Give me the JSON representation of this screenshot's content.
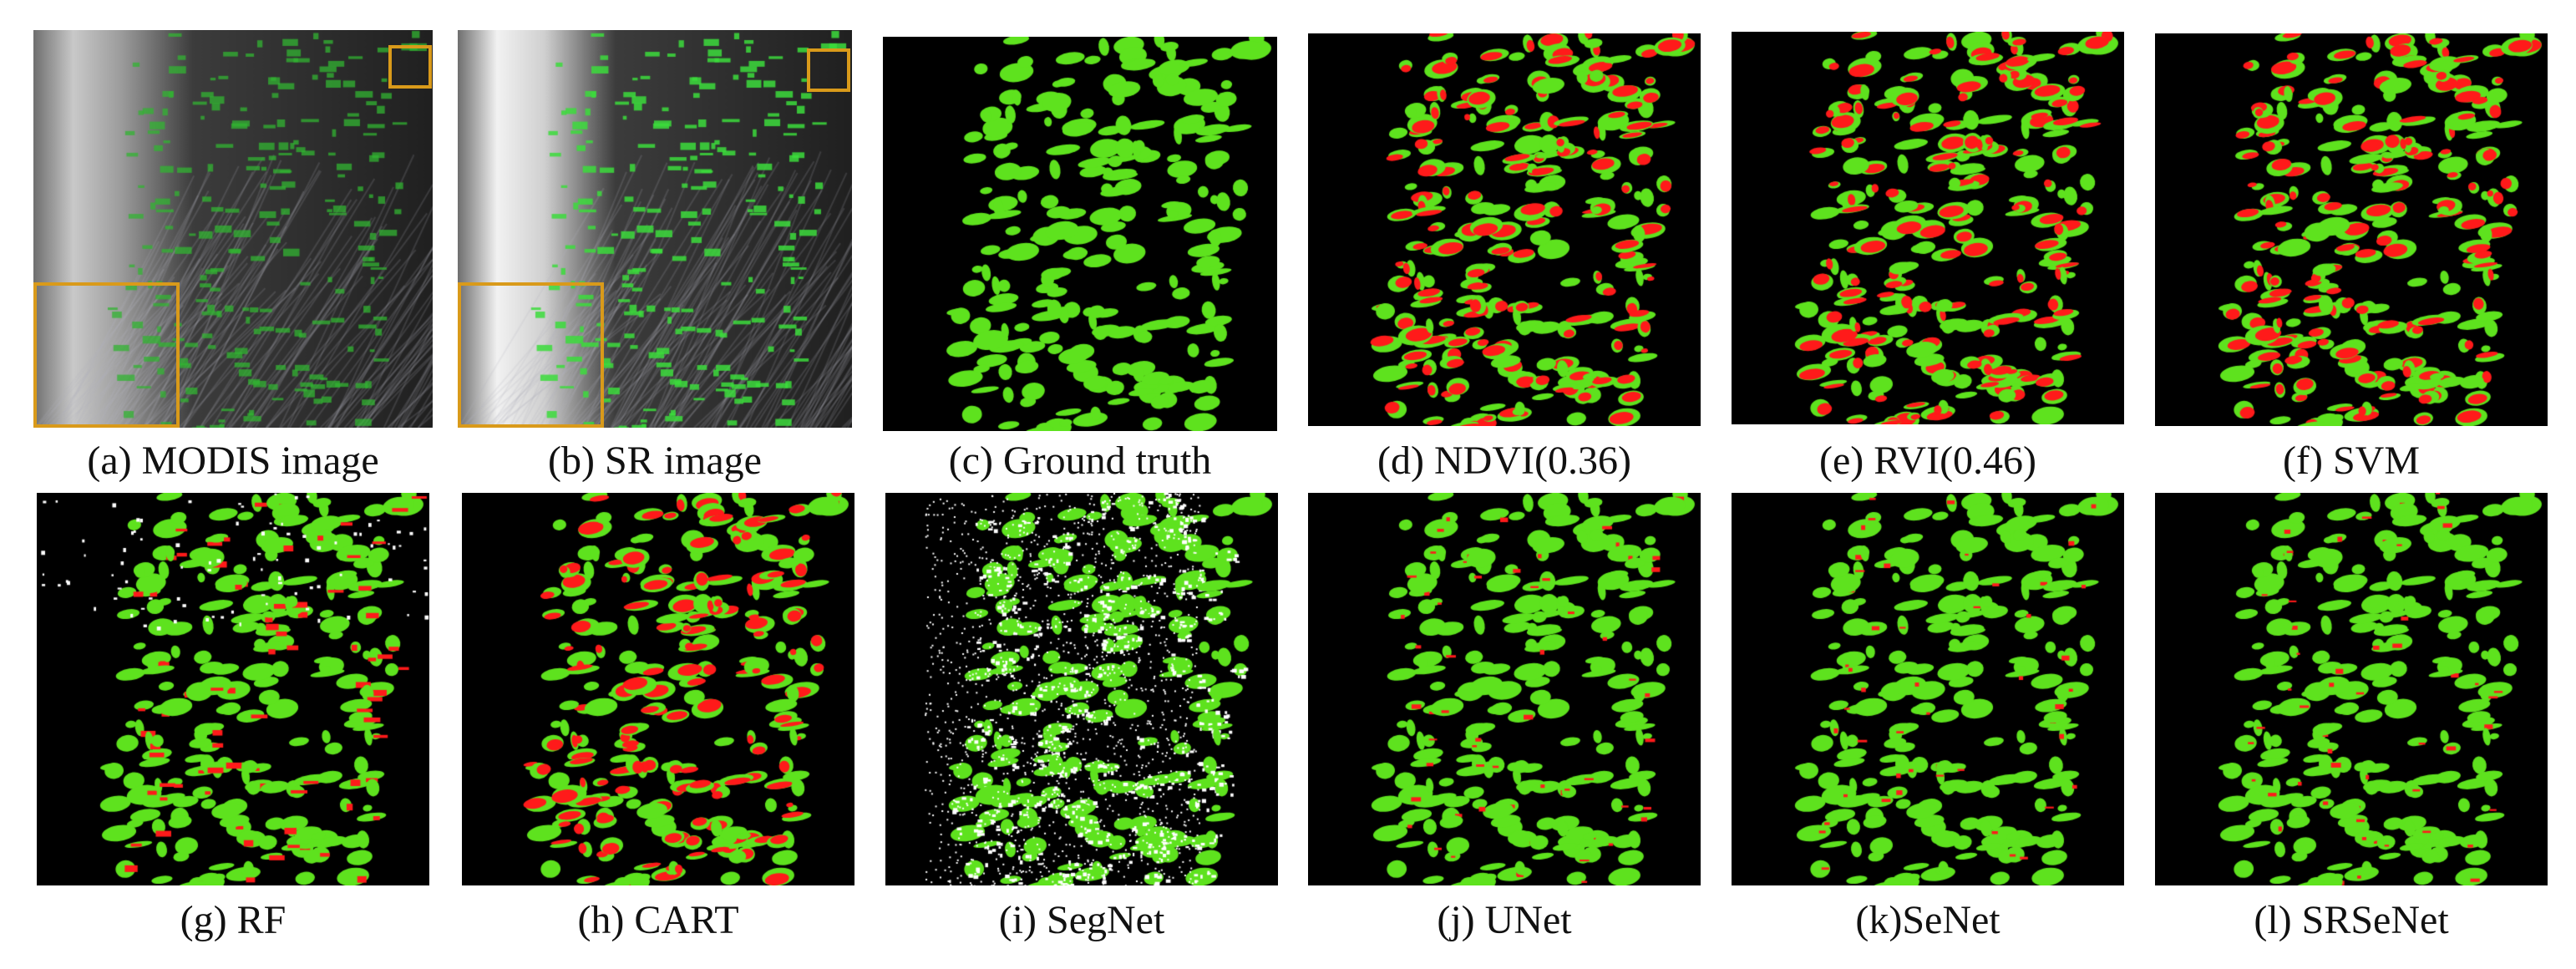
{
  "figure": {
    "rows": [
      {
        "panels": [
          {
            "id": "a",
            "caption": "(a) MODIS image",
            "kind": "modis"
          },
          {
            "id": "b",
            "caption": "(b) SR image",
            "kind": "sr"
          },
          {
            "id": "c",
            "caption": "(c) Ground truth",
            "kind": "gt"
          },
          {
            "id": "d",
            "caption": "(d) NDVI(0.36)",
            "kind": "result"
          },
          {
            "id": "e",
            "caption": "(e) RVI(0.46)",
            "kind": "result"
          },
          {
            "id": "f",
            "caption": "(f) SVM",
            "kind": "result"
          }
        ]
      },
      {
        "panels": [
          {
            "id": "g",
            "caption": "(g) RF",
            "kind": "result"
          },
          {
            "id": "h",
            "caption": "(h) CART",
            "kind": "result"
          },
          {
            "id": "i",
            "caption": "(i) SegNet",
            "kind": "result"
          },
          {
            "id": "j",
            "caption": "(j) UNet",
            "kind": "result"
          },
          {
            "id": "k",
            "caption": "(k)SeNet",
            "kind": "result"
          },
          {
            "id": "l",
            "caption": "(l) SRSeNet",
            "kind": "result"
          }
        ]
      }
    ],
    "colors": {
      "correct": "#5ee21e",
      "missed": "#ff1a1a",
      "false_alarm": "#ffffff",
      "background": "#000000",
      "inset_border": "#d99a1a"
    }
  }
}
